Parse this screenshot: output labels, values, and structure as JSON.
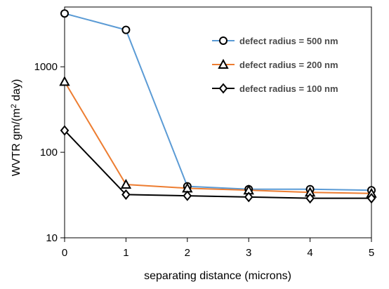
{
  "chart_data": {
    "type": "line",
    "xlabel": "separating distance (microns)",
    "ylabel_pre": "WVTR gm/(m",
    "ylabel_sup": "2",
    "ylabel_post": " day)",
    "x": [
      0,
      1,
      2,
      3,
      4,
      5
    ],
    "x_ticks": [
      "0",
      "1",
      "2",
      "3",
      "4",
      "5"
    ],
    "xlim": [
      0,
      5
    ],
    "ylim": [
      10,
      5000
    ],
    "y_scale": "log",
    "y_ticks": [
      "10",
      "100",
      "1000"
    ],
    "grid": false,
    "legend_position": "top-right",
    "series": [
      {
        "name": "defect radius = 500 nm",
        "values": [
          4200,
          2700,
          40,
          37,
          37,
          36
        ],
        "color": "#5b9bd5",
        "marker": "circle"
      },
      {
        "name": "defect radius = 200 nm",
        "values": [
          670,
          42,
          38,
          36,
          34,
          33
        ],
        "color": "#ed7d31",
        "marker": "triangle"
      },
      {
        "name": "defect radius = 100 nm",
        "values": [
          180,
          32,
          31,
          30,
          29,
          29
        ],
        "color": "#000000",
        "marker": "diamond"
      }
    ]
  }
}
